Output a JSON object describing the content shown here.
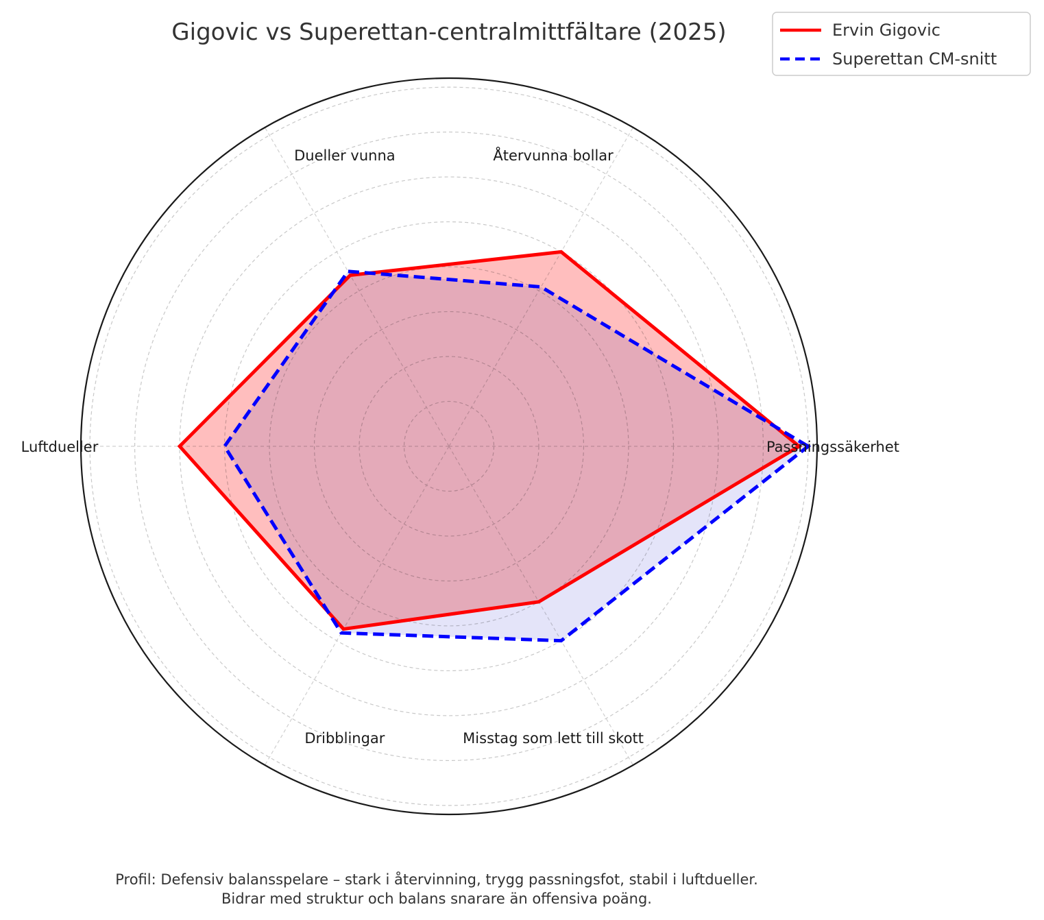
{
  "chart_data": {
    "type": "radar",
    "title": "Gigovic vs Superettan-centralmittfältare (2025)",
    "axes": [
      "Passningssäkerhet",
      "Återvunna bollar",
      "Dueller vunna",
      "Luftdueller",
      "Dribblingar",
      "Misstag som lett till skott"
    ],
    "rlim": [
      0,
      8.2
    ],
    "grid": true,
    "legend_position": "top-right",
    "series": [
      {
        "name": "Ervin Gigovic",
        "values": [
          7.8,
          5.0,
          4.4,
          6.0,
          4.7,
          4.0
        ],
        "color": "#ff0000",
        "fill": "#ffb3b3",
        "linestyle": "solid"
      },
      {
        "name": "Superettan CM-snitt",
        "values": [
          8.0,
          4.1,
          4.5,
          5.0,
          4.8,
          5.0
        ],
        "color": "#0000ff",
        "fill": "#d9d9f7",
        "linestyle": "dashed"
      }
    ],
    "caption": [
      "Profil: Defensiv balansspelare – stark i återvinning, trygg passningsfot, stabil i luftdueller.",
      "Bidrar med struktur och balans snarare än offensiva poäng."
    ]
  }
}
